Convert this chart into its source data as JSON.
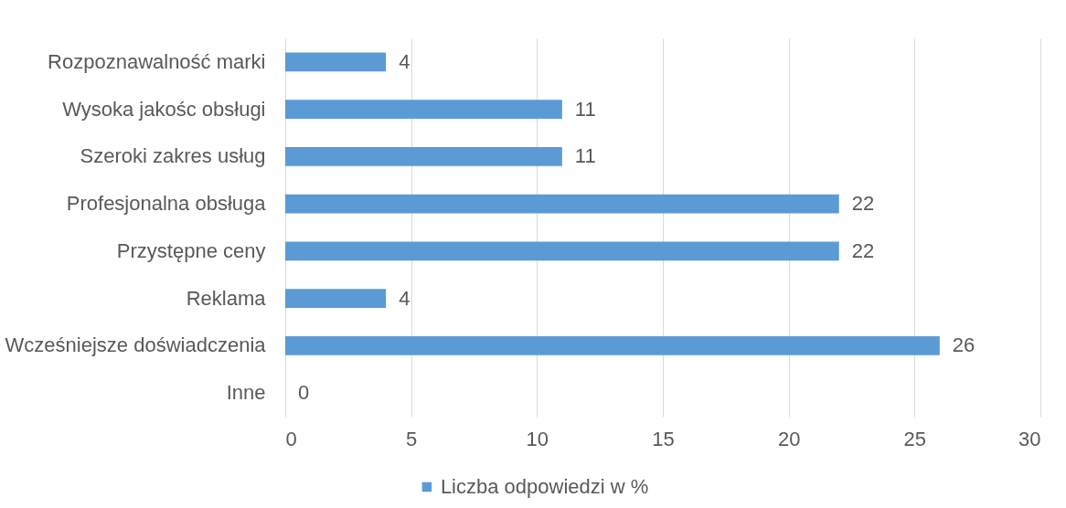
{
  "chart_data": {
    "type": "bar",
    "orientation": "horizontal",
    "categories": [
      "Rozpoznawalność marki",
      "Wysoka jakośc obsługi",
      "Szeroki zakres usług",
      "Profesjonalna obsługa",
      "Przystępne ceny",
      "Reklama",
      "Wcześniejsze doświadczenia",
      "Inne"
    ],
    "series": [
      {
        "name": "Liczba odpowiedzi w %",
        "color": "#5b9bd5",
        "values": [
          4,
          11,
          11,
          22,
          22,
          4,
          26,
          0
        ]
      }
    ],
    "xlim": [
      0,
      30
    ],
    "xticks": [
      0,
      5,
      10,
      15,
      20,
      25,
      30
    ],
    "grid": "x",
    "legend": "bottom",
    "data_labels": true
  }
}
